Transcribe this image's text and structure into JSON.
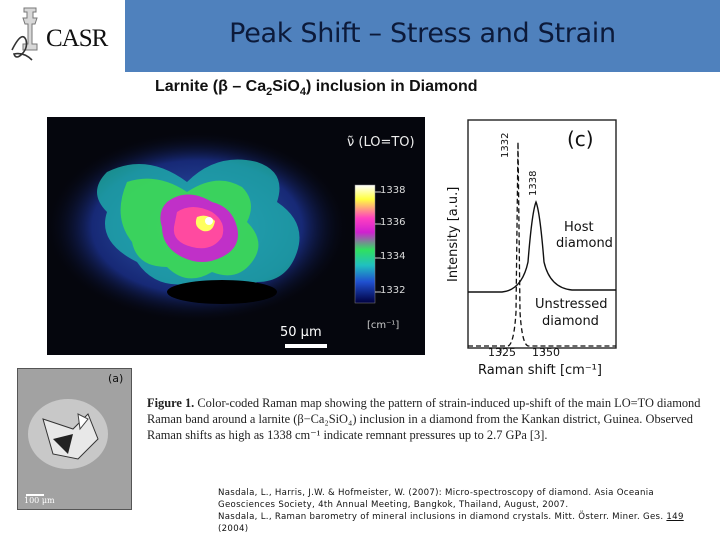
{
  "header": {
    "logo_text": "CASR",
    "title": "Peak Shift – Stress and Strain"
  },
  "subtitle": {
    "pre": "Larnite (",
    "beta": "β",
    "mid": " – Ca",
    "sub1": "2",
    "mid2": "SiO",
    "sub2": "4",
    "post": ") inclusion in Diamond"
  },
  "raman_map": {
    "legend_title": "ν̃ (LO=TO)",
    "ticks": [
      "1338",
      "1336",
      "1334",
      "1332"
    ],
    "unit": "[cm⁻¹]",
    "scale_bar": "50 μm"
  },
  "spectrum": {
    "panel_label": "(c)",
    "peak1": "1332",
    "peak2": "1338",
    "y_label": "Intensity [a.u.]",
    "host_label_1": "Host",
    "host_label_2": "diamond",
    "unstressed_label_1": "Unstressed",
    "unstressed_label_2": "diamond",
    "x_tick_1": "1325",
    "x_tick_2": "1350",
    "x_label": "Raman shift",
    "x_unit": "[cm⁻¹]"
  },
  "micrograph": {
    "panel_label": "(a)",
    "scale": "100 μm"
  },
  "caption": {
    "figure": "Figure 1.",
    "text": " Color-coded Raman map showing the pattern of strain-induced up-shift of the main LO=TO diamond Raman band around a larnite (β−Ca₂SiO₄) inclusion in a diamond from the Kankan district, Guinea. Observed Raman shifts as high as 1338 cm⁻¹ indicate remnant pressures up to 2.7 GPa [3]."
  },
  "references": {
    "ref1": "Nasdala, L., Harris, J.W. & Hofmeister, W. (2007): Micro-spectroscopy of diamond. Asia Oceania Geosciences Society, 4th Annual Meeting, Bangkok, Thailand, August, 2007.",
    "ref2_pre": "Nasdala, L., Raman barometry of mineral inclusions in diamond crystals. Mitt. Österr. Miner. Ges. ",
    "ref2_vol": "149",
    "ref2_post": " (2004)"
  },
  "colors": {
    "title_bar": "#4f81bd",
    "title_text": "#0c1a3a"
  }
}
